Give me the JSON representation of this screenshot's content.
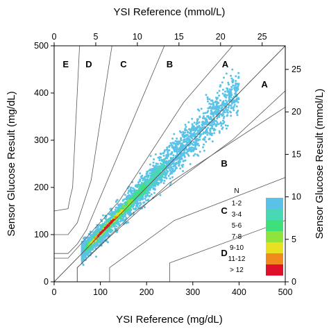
{
  "chart_data": {
    "type": "scatter",
    "title": "",
    "xlabel": "YSI Reference (mg/dL)",
    "ylabel": "Sensor Glucose Result (mg/dL)",
    "x2label": "YSI Reference (mmol/L)",
    "y2label": "Sensor Glucose Result (mmol/L)",
    "xlim": [
      0,
      500
    ],
    "ylim": [
      0,
      500
    ],
    "xticks": [
      0,
      100,
      200,
      300,
      400,
      500
    ],
    "yticks": [
      0,
      100,
      200,
      300,
      400,
      500
    ],
    "x2ticks": [
      0,
      5,
      10,
      15,
      20,
      25
    ],
    "y2ticks": [
      0,
      5,
      10,
      15,
      20,
      25
    ],
    "mmol_factor": 18,
    "grid": false,
    "legend_position": "bottom-right",
    "legend": {
      "title": "N",
      "entries": [
        {
          "label": "1-2",
          "color": "#5bc2e7"
        },
        {
          "label": "3-4",
          "color": "#49d8b4"
        },
        {
          "label": "5-6",
          "color": "#3ee07a"
        },
        {
          "label": "7-8",
          "color": "#8fe43c"
        },
        {
          "label": "9-10",
          "color": "#e8e020"
        },
        {
          "label": "11-12",
          "color": "#f08a1c"
        },
        {
          "label": "> 12",
          "color": "#e0102a"
        }
      ]
    },
    "zones": {
      "labels": [
        {
          "text": "E",
          "x": 25,
          "y": 460
        },
        {
          "text": "D",
          "x": 75,
          "y": 460
        },
        {
          "text": "C",
          "x": 150,
          "y": 460
        },
        {
          "text": "B",
          "x": 250,
          "y": 460
        },
        {
          "text": "A",
          "x": 370,
          "y": 460
        },
        {
          "text": "A",
          "x": 455,
          "y": 418
        },
        {
          "text": "B",
          "x": 368,
          "y": 250
        },
        {
          "text": "C",
          "x": 368,
          "y": 150
        },
        {
          "text": "D",
          "x": 368,
          "y": 60
        }
      ],
      "lines": [
        [
          [
            0,
            0
          ],
          [
            500,
            500
          ]
        ],
        [
          [
            0,
            50
          ],
          [
            30,
            50
          ],
          [
            140,
            170
          ],
          [
            280,
            380
          ],
          [
            430,
            550
          ]
        ],
        [
          [
            0,
            60
          ],
          [
            30,
            60
          ],
          [
            30,
            60
          ],
          [
            50,
            80
          ],
          [
            70,
            110
          ],
          [
            260,
            550
          ]
        ],
        [
          [
            0,
            100
          ],
          [
            30,
            100
          ],
          [
            30,
            100
          ],
          [
            50,
            125
          ],
          [
            80,
            215
          ],
          [
            125,
            500
          ]
        ],
        [
          [
            0,
            150
          ],
          [
            30,
            155
          ],
          [
            35,
            180
          ],
          [
            40,
            200
          ],
          [
            55,
            500
          ]
        ],
        [
          [
            50,
            0
          ],
          [
            50,
            30
          ],
          [
            120,
            95
          ],
          [
            250,
            210
          ],
          [
            500,
            370
          ]
        ],
        [
          [
            50,
            0
          ],
          [
            50,
            30
          ],
          [
            170,
            145
          ],
          [
            385,
            300
          ],
          [
            550,
            450
          ]
        ],
        [
          [
            120,
            0
          ],
          [
            120,
            30
          ],
          [
            260,
            130
          ],
          [
            550,
            240
          ]
        ],
        [
          [
            250,
            0
          ],
          [
            250,
            40
          ],
          [
            500,
            130
          ]
        ],
        [
          [
            0,
            0
          ],
          [
            500,
            500
          ]
        ]
      ]
    },
    "density_bands": [
      {
        "level": 0,
        "color": "#5bc2e7",
        "spread": 55,
        "x_range": [
          60,
          400
        ],
        "count": 2600
      },
      {
        "level": 1,
        "color": "#49d8b4",
        "spread": 26,
        "x_range": [
          65,
          240
        ],
        "count": 420
      },
      {
        "level": 2,
        "color": "#3ee07a",
        "spread": 18,
        "x_range": [
          70,
          200
        ],
        "count": 220
      },
      {
        "level": 3,
        "color": "#8fe43c",
        "spread": 12,
        "x_range": [
          75,
          170
        ],
        "count": 130
      },
      {
        "level": 4,
        "color": "#e8e020",
        "spread": 9,
        "x_range": [
          80,
          150
        ],
        "count": 80
      },
      {
        "level": 5,
        "color": "#f08a1c",
        "spread": 6,
        "x_range": [
          85,
          135
        ],
        "count": 50
      },
      {
        "level": 6,
        "color": "#e0102a",
        "spread": 4,
        "x_range": [
          95,
          130
        ],
        "count": 35
      }
    ]
  }
}
